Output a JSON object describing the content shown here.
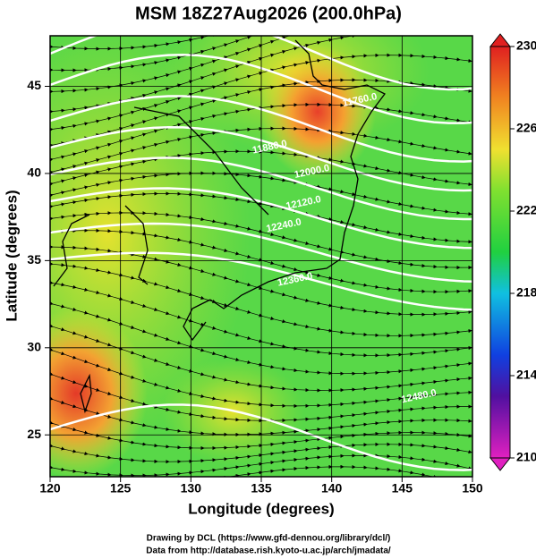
{
  "chart_data": {
    "type": "map",
    "title": "MSM 18Z27Aug2026 (200.0hPa)",
    "x_label": "Longitude (degrees)",
    "y_label": "Latitude  (degrees)",
    "xlim": [
      120,
      150
    ],
    "xticks": [
      120,
      125,
      130,
      135,
      140,
      145,
      150
    ],
    "ylim": [
      22.6,
      47.9
    ],
    "yticks": [
      25,
      30,
      35,
      40,
      45
    ],
    "grid": true,
    "colorbar": {
      "lim": [
        210,
        230
      ],
      "ticks": [
        210,
        214,
        218,
        222,
        226,
        230
      ]
    },
    "contour_labels": [
      {
        "text": "11760.0",
        "lon": 142,
        "lat": 44.2
      },
      {
        "text": "11880.0",
        "lon": 135.6,
        "lat": 41.5
      },
      {
        "text": "12000.0",
        "lon": 138.6,
        "lat": 40.1
      },
      {
        "text": "12120.0",
        "lon": 138,
        "lat": 38.3
      },
      {
        "text": "12240.0",
        "lon": 136.6,
        "lat": 37
      },
      {
        "text": "12360.0",
        "lon": 137.4,
        "lat": 33.9
      },
      {
        "text": "12480.0",
        "lon": 146.2,
        "lat": 27.2
      }
    ],
    "footer": [
      "Drawing by DCL (https://www.gfd-dennou.org/library/dcl/)",
      "Data from http://database.rish.kyoto-u.ac.jp/arch/jmadata/"
    ]
  }
}
